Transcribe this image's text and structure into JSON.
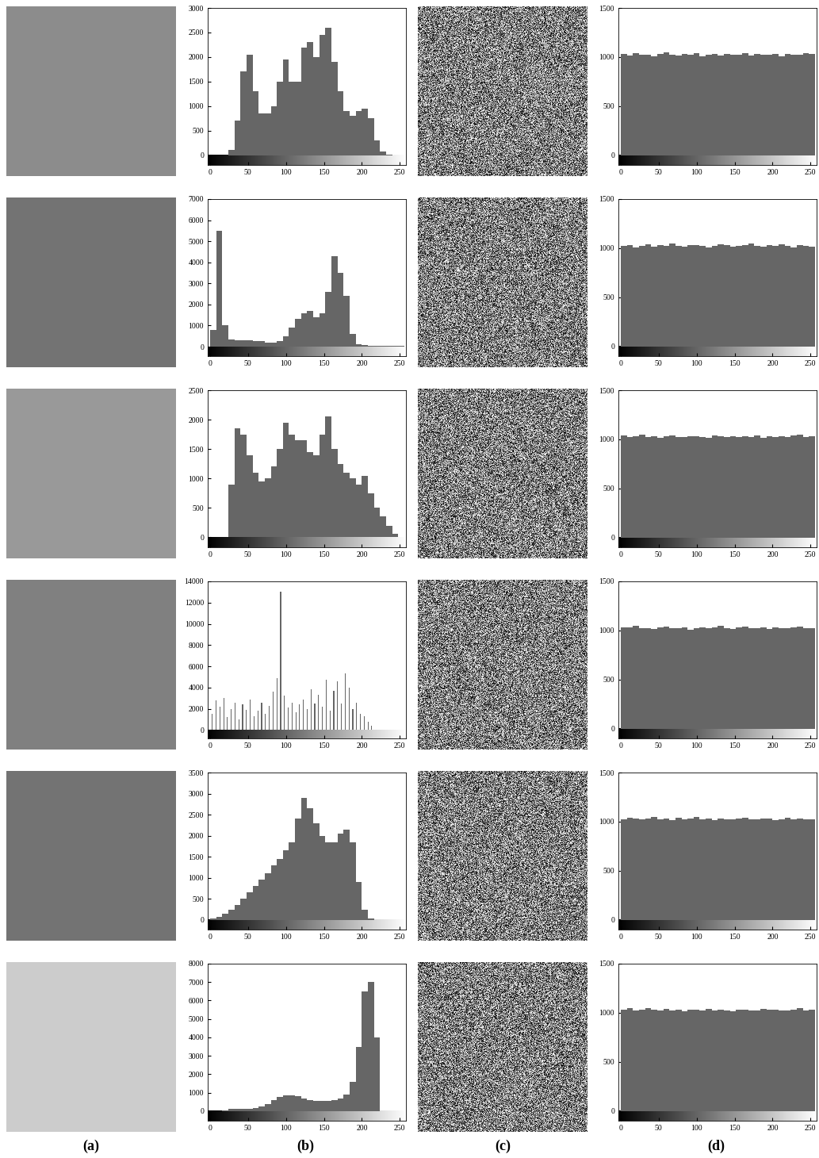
{
  "panel_labels": [
    "(a)",
    "(b)",
    "(c)",
    "(d)"
  ],
  "chart_data": [
    {
      "type": "histogram",
      "color": "#666666",
      "bins": [
        0,
        8,
        16,
        24,
        32,
        40,
        48,
        56,
        64,
        72,
        80,
        88,
        96,
        104,
        112,
        120,
        128,
        136,
        144,
        152,
        160,
        168,
        176,
        184,
        192,
        200,
        208,
        216,
        224,
        232,
        240,
        248,
        256
      ],
      "values": [
        0,
        0,
        0,
        100,
        700,
        1700,
        2050,
        1300,
        850,
        850,
        1000,
        1500,
        1950,
        1500,
        1500,
        2200,
        2300,
        2000,
        2450,
        2600,
        1900,
        1300,
        900,
        800,
        900,
        950,
        750,
        300,
        80,
        5,
        0,
        0
      ],
      "xlim": [
        -3,
        258
      ],
      "xticks": [
        0,
        50,
        100,
        150,
        200,
        250
      ],
      "ylim": [
        -200,
        3000
      ],
      "yticks": [
        0,
        500,
        1000,
        1500,
        2000,
        2500,
        3000
      ]
    },
    {
      "type": "histogram",
      "color": "#666666",
      "bins": [
        0,
        8,
        16,
        24,
        32,
        40,
        48,
        56,
        64,
        72,
        80,
        88,
        96,
        104,
        112,
        120,
        128,
        136,
        144,
        152,
        160,
        168,
        176,
        184,
        192,
        200,
        208,
        216,
        224,
        232,
        240,
        248,
        256
      ],
      "values": [
        1030,
        1015,
        1040,
        1020,
        1025,
        1010,
        1035,
        1045,
        1020,
        1015,
        1030,
        1025,
        1040,
        1010,
        1020,
        1035,
        1015,
        1030,
        1025,
        1020,
        1040,
        1015,
        1030,
        1020,
        1025,
        1035,
        1010,
        1030,
        1020,
        1025,
        1040,
        1030
      ],
      "xlim": [
        -3,
        258
      ],
      "xticks": [
        0,
        50,
        100,
        150,
        200,
        250
      ],
      "ylim": [
        -100,
        1500
      ],
      "yticks": [
        0,
        500,
        1000,
        1500
      ]
    },
    {
      "type": "histogram",
      "color": "#666666",
      "bins": [
        0,
        8,
        16,
        24,
        32,
        40,
        48,
        56,
        64,
        72,
        80,
        88,
        96,
        104,
        112,
        120,
        128,
        136,
        144,
        152,
        160,
        168,
        176,
        184,
        192,
        200,
        208,
        216,
        224,
        232,
        240,
        248,
        256
      ],
      "values": [
        800,
        5500,
        1000,
        350,
        320,
        300,
        300,
        280,
        250,
        200,
        200,
        250,
        500,
        900,
        1300,
        1600,
        1700,
        1400,
        1600,
        2600,
        4300,
        3500,
        2400,
        600,
        120,
        60,
        50,
        40,
        40,
        40,
        40,
        30
      ],
      "xlim": [
        -3,
        258
      ],
      "xticks": [
        0,
        50,
        100,
        150,
        200,
        250
      ],
      "ylim": [
        -450,
        7000
      ],
      "yticks": [
        0,
        1000,
        2000,
        3000,
        4000,
        5000,
        6000,
        7000
      ]
    },
    {
      "type": "histogram",
      "color": "#666666",
      "bins": [
        0,
        8,
        16,
        24,
        32,
        40,
        48,
        56,
        64,
        72,
        80,
        88,
        96,
        104,
        112,
        120,
        128,
        136,
        144,
        152,
        160,
        168,
        176,
        184,
        192,
        200,
        208,
        216,
        224,
        232,
        240,
        248,
        256
      ],
      "values": [
        1020,
        1035,
        1010,
        1025,
        1040,
        1015,
        1030,
        1020,
        1045,
        1025,
        1015,
        1030,
        1035,
        1020,
        1010,
        1025,
        1040,
        1030,
        1015,
        1020,
        1035,
        1045,
        1025,
        1015,
        1030,
        1020,
        1040,
        1025,
        1010,
        1030,
        1020,
        1015
      ],
      "xlim": [
        -3,
        258
      ],
      "xticks": [
        0,
        50,
        100,
        150,
        200,
        250
      ],
      "ylim": [
        -100,
        1500
      ],
      "yticks": [
        0,
        500,
        1000,
        1500
      ]
    },
    {
      "type": "histogram",
      "color": "#666666",
      "bins": [
        0,
        8,
        16,
        24,
        32,
        40,
        48,
        56,
        64,
        72,
        80,
        88,
        96,
        104,
        112,
        120,
        128,
        136,
        144,
        152,
        160,
        168,
        176,
        184,
        192,
        200,
        208,
        216,
        224,
        232,
        240,
        248,
        256
      ],
      "values": [
        0,
        0,
        0,
        900,
        1850,
        1750,
        1400,
        1100,
        950,
        1000,
        1200,
        1500,
        1950,
        1750,
        1650,
        1650,
        1450,
        1400,
        1750,
        2050,
        1500,
        1250,
        1100,
        1000,
        900,
        1050,
        750,
        500,
        350,
        200,
        60,
        0
      ],
      "xlim": [
        -3,
        258
      ],
      "xticks": [
        0,
        50,
        100,
        150,
        200,
        250
      ],
      "ylim": [
        -170,
        2500
      ],
      "yticks": [
        0,
        500,
        1000,
        1500,
        2000,
        2500
      ]
    },
    {
      "type": "histogram",
      "color": "#666666",
      "bins": [
        0,
        8,
        16,
        24,
        32,
        40,
        48,
        56,
        64,
        72,
        80,
        88,
        96,
        104,
        112,
        120,
        128,
        136,
        144,
        152,
        160,
        168,
        176,
        184,
        192,
        200,
        208,
        216,
        224,
        232,
        240,
        248,
        256
      ],
      "values": [
        1040,
        1025,
        1030,
        1045,
        1020,
        1035,
        1015,
        1030,
        1040,
        1025,
        1020,
        1035,
        1030,
        1025,
        1015,
        1040,
        1030,
        1020,
        1035,
        1025,
        1030,
        1020,
        1040,
        1015,
        1035,
        1025,
        1030,
        1020,
        1040,
        1045,
        1025,
        1030
      ],
      "xlim": [
        -3,
        258
      ],
      "xticks": [
        0,
        50,
        100,
        150,
        200,
        250
      ],
      "ylim": [
        -100,
        1500
      ],
      "yticks": [
        0,
        500,
        1000,
        1500
      ]
    },
    {
      "type": "bar",
      "color": "#666666",
      "x": [
        3,
        8,
        13,
        18,
        23,
        28,
        33,
        38,
        43,
        48,
        53,
        58,
        63,
        68,
        73,
        78,
        83,
        88,
        93,
        98,
        103,
        108,
        113,
        118,
        123,
        128,
        133,
        138,
        143,
        148,
        153,
        158,
        163,
        168,
        173,
        178,
        183,
        188,
        193,
        198,
        203,
        208,
        213
      ],
      "values": [
        1500,
        2800,
        2200,
        3000,
        1200,
        2000,
        2600,
        1000,
        2400,
        1900,
        2900,
        1300,
        1800,
        2600,
        1500,
        2300,
        3600,
        4900,
        13000,
        3200,
        2100,
        2600,
        1700,
        2400,
        2900,
        2000,
        3800,
        2500,
        3300,
        2200,
        4700,
        1800,
        3700,
        4600,
        2500,
        5300,
        4000,
        2000,
        2600,
        1500,
        1300,
        800,
        400
      ],
      "xlim": [
        -3,
        258
      ],
      "xticks": [
        0,
        50,
        100,
        150,
        200,
        250
      ],
      "ylim": [
        -800,
        14000
      ],
      "yticks": [
        0,
        2000,
        4000,
        6000,
        8000,
        10000,
        12000,
        14000
      ]
    },
    {
      "type": "histogram",
      "color": "#666666",
      "bins": [
        0,
        8,
        16,
        24,
        32,
        40,
        48,
        56,
        64,
        72,
        80,
        88,
        96,
        104,
        112,
        120,
        128,
        136,
        144,
        152,
        160,
        168,
        176,
        184,
        192,
        200,
        208,
        216,
        224,
        232,
        240,
        248,
        256
      ],
      "values": [
        1035,
        1030,
        1045,
        1020,
        1025,
        1015,
        1030,
        1040,
        1025,
        1020,
        1030,
        1010,
        1025,
        1035,
        1020,
        1030,
        1045,
        1025,
        1015,
        1030,
        1040,
        1020,
        1025,
        1030,
        1015,
        1035,
        1025,
        1020,
        1030,
        1040,
        1025,
        1020
      ],
      "xlim": [
        -3,
        258
      ],
      "xticks": [
        0,
        50,
        100,
        150,
        200,
        250
      ],
      "ylim": [
        -100,
        1500
      ],
      "yticks": [
        0,
        500,
        1000,
        1500
      ]
    },
    {
      "type": "histogram",
      "color": "#666666",
      "bins": [
        0,
        8,
        16,
        24,
        32,
        40,
        48,
        56,
        64,
        72,
        80,
        88,
        96,
        104,
        112,
        120,
        128,
        136,
        144,
        152,
        160,
        168,
        176,
        184,
        192,
        200,
        208,
        216,
        224,
        232,
        240,
        248,
        256
      ],
      "values": [
        30,
        80,
        150,
        250,
        350,
        500,
        650,
        800,
        950,
        1100,
        1300,
        1450,
        1650,
        1850,
        2400,
        2900,
        2650,
        2300,
        2000,
        1850,
        1850,
        2050,
        2150,
        1850,
        900,
        250,
        40,
        0,
        0,
        0,
        0,
        0
      ],
      "xlim": [
        -3,
        258
      ],
      "xticks": [
        0,
        50,
        100,
        150,
        200,
        250
      ],
      "ylim": [
        -230,
        3500
      ],
      "yticks": [
        0,
        500,
        1000,
        1500,
        2000,
        2500,
        3000,
        3500
      ]
    },
    {
      "type": "histogram",
      "color": "#666666",
      "bins": [
        0,
        8,
        16,
        24,
        32,
        40,
        48,
        56,
        64,
        72,
        80,
        88,
        96,
        104,
        112,
        120,
        128,
        136,
        144,
        152,
        160,
        168,
        176,
        184,
        192,
        200,
        208,
        216,
        224,
        232,
        240,
        248,
        256
      ],
      "values": [
        1025,
        1040,
        1030,
        1020,
        1035,
        1050,
        1025,
        1030,
        1015,
        1040,
        1020,
        1030,
        1045,
        1025,
        1030,
        1015,
        1035,
        1020,
        1025,
        1030,
        1040,
        1025,
        1020,
        1035,
        1030,
        1015,
        1025,
        1040,
        1020,
        1030,
        1025,
        1020
      ],
      "xlim": [
        -3,
        258
      ],
      "xticks": [
        0,
        50,
        100,
        150,
        200,
        250
      ],
      "ylim": [
        -100,
        1500
      ],
      "yticks": [
        0,
        500,
        1000,
        1500
      ]
    },
    {
      "type": "histogram",
      "color": "#666666",
      "bins": [
        0,
        8,
        16,
        24,
        32,
        40,
        48,
        56,
        64,
        72,
        80,
        88,
        96,
        104,
        112,
        120,
        128,
        136,
        144,
        152,
        160,
        168,
        176,
        184,
        192,
        200,
        208,
        216,
        224,
        232,
        240,
        248,
        256
      ],
      "values": [
        0,
        0,
        50,
        120,
        130,
        120,
        110,
        150,
        250,
        400,
        600,
        750,
        850,
        850,
        800,
        700,
        600,
        550,
        550,
        550,
        600,
        700,
        900,
        1600,
        3500,
        6500,
        7000,
        4000,
        0,
        0,
        0,
        0
      ],
      "xlim": [
        -3,
        258
      ],
      "xticks": [
        0,
        50,
        100,
        150,
        200,
        250
      ],
      "ylim": [
        -520,
        8000
      ],
      "yticks": [
        0,
        1000,
        2000,
        3000,
        4000,
        5000,
        6000,
        7000,
        8000
      ]
    },
    {
      "type": "histogram",
      "color": "#666666",
      "bins": [
        0,
        8,
        16,
        24,
        32,
        40,
        48,
        56,
        64,
        72,
        80,
        88,
        96,
        104,
        112,
        120,
        128,
        136,
        144,
        152,
        160,
        168,
        176,
        184,
        192,
        200,
        208,
        216,
        224,
        232,
        240,
        248,
        256
      ],
      "values": [
        1030,
        1045,
        1025,
        1035,
        1050,
        1030,
        1020,
        1040,
        1025,
        1030,
        1015,
        1035,
        1030,
        1025,
        1040,
        1020,
        1030,
        1025,
        1015,
        1035,
        1030,
        1020,
        1025,
        1040,
        1030,
        1035,
        1020,
        1025,
        1030,
        1045,
        1020,
        1030
      ],
      "xlim": [
        -3,
        258
      ],
      "xticks": [
        0,
        50,
        100,
        150,
        200,
        250
      ],
      "ylim": [
        -100,
        1500
      ],
      "yticks": [
        0,
        500,
        1000,
        1500
      ]
    }
  ]
}
